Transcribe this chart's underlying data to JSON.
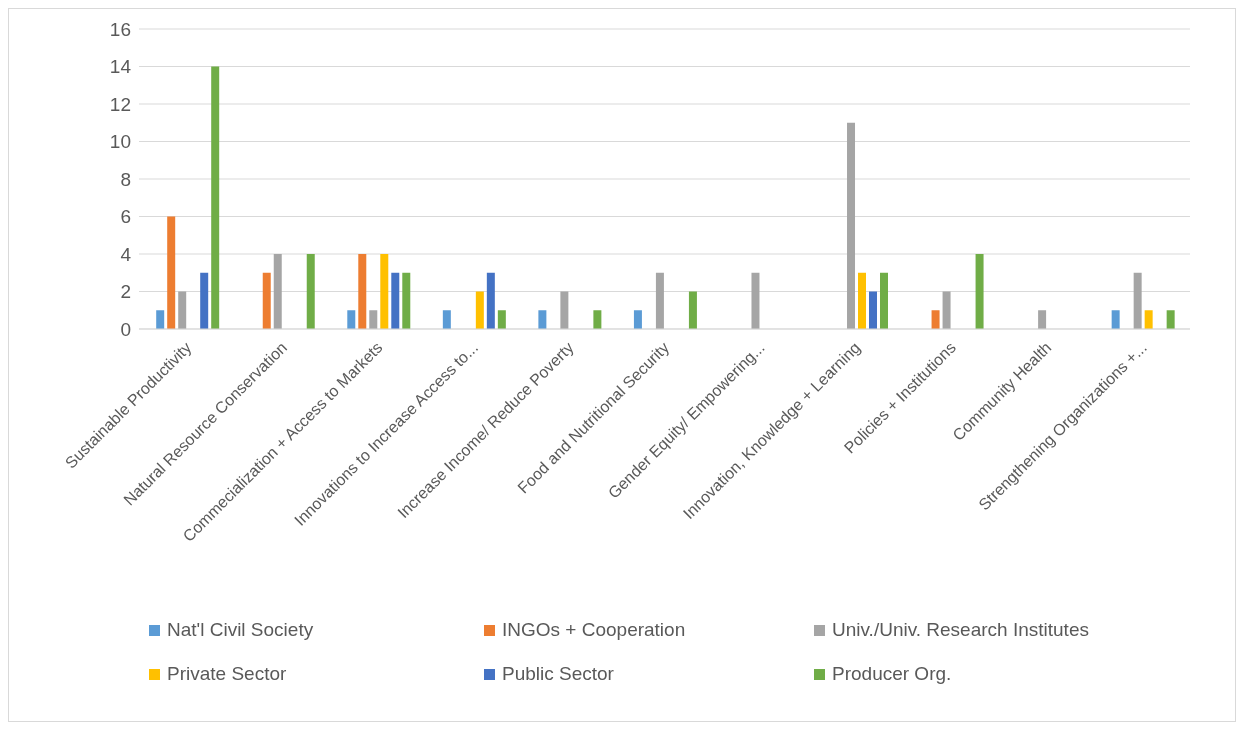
{
  "chart_data": {
    "type": "bar",
    "categories": [
      "Sustainable Productivity",
      "Natural Resource Conservation",
      "Commecialization + Access to Markets",
      "Innovations to Increase Access to...",
      "Increase Income/ Reduce Poverty",
      "Food and Nutritional Security",
      "Gender Equity/ Empowering...",
      "Innovation, Knowledge + Learning",
      "Policies + Institutions",
      "Community Health",
      "Strengthening Organizations +..."
    ],
    "series": [
      {
        "name": "Nat'l Civil Society",
        "color": "#5b9bd5",
        "values": [
          1,
          null,
          1,
          1,
          1,
          1,
          null,
          null,
          null,
          null,
          1
        ]
      },
      {
        "name": "INGOs + Cooperation",
        "color": "#ed7d31",
        "values": [
          6,
          3,
          4,
          null,
          null,
          null,
          null,
          null,
          1,
          null,
          null
        ]
      },
      {
        "name": "Univ./Univ. Research Institutes",
        "color": "#a5a5a5",
        "values": [
          2,
          4,
          1,
          null,
          2,
          3,
          3,
          11,
          2,
          1,
          3
        ]
      },
      {
        "name": "Private Sector",
        "color": "#ffc000",
        "values": [
          null,
          null,
          4,
          2,
          null,
          null,
          null,
          3,
          null,
          null,
          1
        ]
      },
      {
        "name": "Public Sector",
        "color": "#4472c4",
        "values": [
          3,
          null,
          3,
          3,
          null,
          null,
          null,
          2,
          null,
          null,
          null
        ]
      },
      {
        "name": "Producer Org.",
        "color": "#70ad47",
        "values": [
          14,
          4,
          3,
          1,
          1,
          2,
          null,
          3,
          4,
          null,
          1
        ]
      }
    ],
    "ylim": [
      0,
      16
    ],
    "yticks": [
      0,
      2,
      4,
      6,
      8,
      10,
      12,
      14,
      16
    ],
    "grid": "y",
    "legend": "bottom"
  }
}
